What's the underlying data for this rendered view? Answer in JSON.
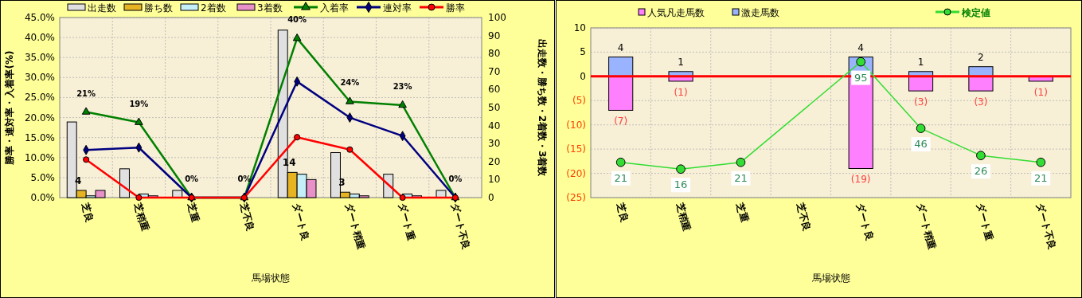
{
  "chart_data": [
    {
      "type": "bar",
      "categories": [
        "芝良",
        "芝稍重",
        "芝重",
        "芝不良",
        "ダート良",
        "ダート稍重",
        "ダート重",
        "ダート不良"
      ],
      "xlabel": "馬場状態",
      "ylabel": "勝率・連対率・入着率(%)",
      "y2label": "出走数・勝ち数・2着数・3着数",
      "ylim": [
        0,
        45
      ],
      "yticks": [
        {
          "value": 0,
          "label": "0.0%"
        },
        {
          "value": 5,
          "label": "5.0%"
        },
        {
          "value": 10,
          "label": "10.0%"
        },
        {
          "value": 15,
          "label": "15.0%"
        },
        {
          "value": 20,
          "label": "20.0%"
        },
        {
          "value": 25,
          "label": "25.0%"
        },
        {
          "value": 30,
          "label": "30.0%"
        },
        {
          "value": 35,
          "label": "35.0%"
        },
        {
          "value": 40,
          "label": "40.0%"
        },
        {
          "value": 45,
          "label": "45.0%"
        }
      ],
      "y2lim": [
        0,
        100
      ],
      "y2ticks": [
        0,
        10,
        20,
        30,
        40,
        50,
        60,
        70,
        80,
        90,
        100
      ],
      "grid": true,
      "legend": "top",
      "series": [
        {
          "name": "出走数",
          "axis": "y2",
          "color": "#e0e0e0",
          "values": [
            42,
            16,
            4,
            0,
            93,
            25,
            13,
            4
          ]
        },
        {
          "name": "勝ち数",
          "axis": "y2",
          "color": "#e6b422",
          "values": [
            4,
            0,
            0,
            0,
            14,
            3,
            0,
            0
          ],
          "value_labels": [
            "4",
            null,
            null,
            null,
            "14",
            "3",
            null,
            null
          ]
        },
        {
          "name": "2着数",
          "axis": "y2",
          "color": "#c4eef8",
          "values": [
            1,
            2,
            0,
            0,
            13,
            2,
            2,
            0
          ]
        },
        {
          "name": "3着数",
          "axis": "y2",
          "color": "#e890c8",
          "values": [
            4,
            1,
            0,
            0,
            10,
            1,
            1,
            0
          ]
        },
        {
          "name": "入着率",
          "type": "line",
          "color": "#008000",
          "marker": "triangle",
          "values": [
            21.4,
            18.8,
            0,
            0,
            39.8,
            24,
            23.1,
            0
          ],
          "value_labels": [
            "21%",
            "19%",
            "0%",
            "0%",
            "40%",
            "24%",
            "23%",
            "0%"
          ]
        },
        {
          "name": "連対率",
          "type": "line",
          "color": "#000080",
          "marker": "diamond",
          "values": [
            11.9,
            12.5,
            0,
            0,
            29.0,
            20,
            15.4,
            0
          ]
        },
        {
          "name": "勝率",
          "type": "line",
          "color": "#ff0000",
          "marker": "circle",
          "values": [
            9.5,
            0,
            0,
            0,
            15.1,
            12,
            0,
            0
          ]
        }
      ]
    },
    {
      "type": "bar",
      "categories": [
        "芝良",
        "芝稍重",
        "芝重",
        "芝不良",
        "ダート良",
        "ダート稍重",
        "ダート重",
        "ダート不良"
      ],
      "xlabel": "馬場状態",
      "stacked": true,
      "ylim": [
        -25,
        10
      ],
      "yticks": [
        {
          "value": -25,
          "label": "(25)"
        },
        {
          "value": -20,
          "label": "(20)"
        },
        {
          "value": -15,
          "label": "(15)"
        },
        {
          "value": -10,
          "label": "(10)"
        },
        {
          "value": -5,
          "label": "(5)"
        },
        0,
        5,
        10
      ],
      "y2lim": [
        -5,
        120
      ],
      "grid": true,
      "legend": "top",
      "ref_lines": [
        {
          "axis": "y",
          "value": 0,
          "color": "#ff0000"
        }
      ],
      "series": [
        {
          "name": "人気凡走馬数",
          "color": "#ff80ff",
          "values": [
            -7,
            -1,
            0,
            0,
            -19,
            -3,
            -3,
            -1
          ],
          "value_labels": [
            "(7)",
            "(1)",
            null,
            null,
            "(19)",
            "(3)",
            "(3)",
            "(1)"
          ]
        },
        {
          "name": "激走馬数",
          "color": "#99b3ff",
          "values": [
            4,
            1,
            0,
            0,
            4,
            1,
            2,
            0
          ],
          "value_labels": [
            "4",
            "1",
            null,
            null,
            "4",
            "1",
            "2",
            null
          ]
        },
        {
          "name": "検定値",
          "type": "line",
          "axis": "y2",
          "color": "#33dd33",
          "marker": "circle",
          "values": [
            21,
            16,
            21,
            null,
            95,
            46,
            26,
            21
          ],
          "data_labels": true
        }
      ]
    }
  ]
}
